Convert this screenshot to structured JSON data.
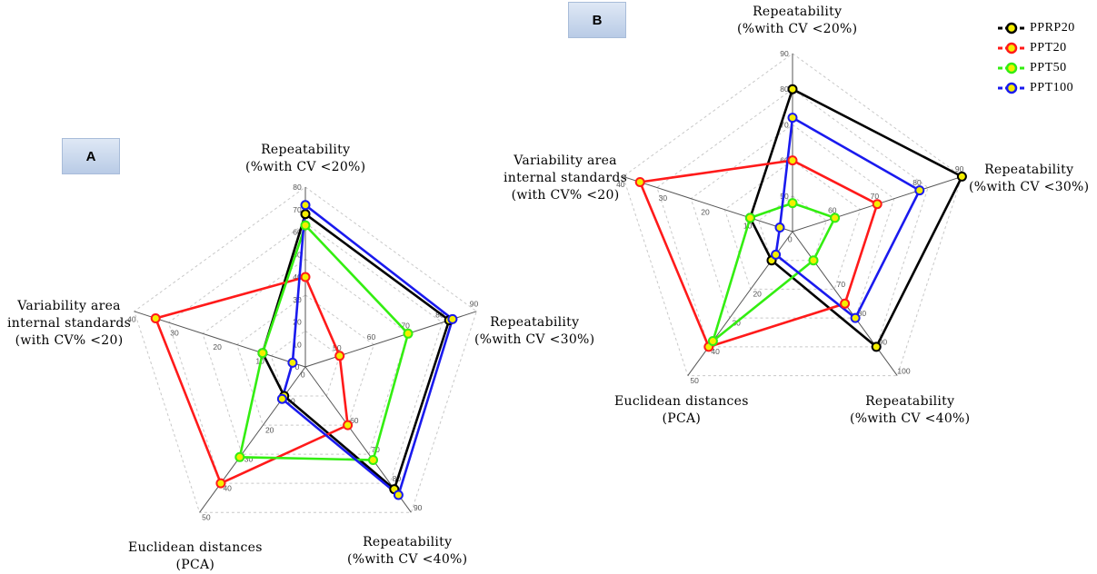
{
  "colors": {
    "PPRP20": "#000000",
    "PPT20": "#ff1a1a",
    "PPT50": "#33ee11",
    "PPT100": "#1a1aee",
    "marker_fill": "#f4ee00"
  },
  "chart_data": [
    {
      "panel": "A",
      "type": "radar",
      "axes": [
        {
          "title": [
            "Repeatability",
            "(%with CV <20%)"
          ],
          "min": 0,
          "max": 80,
          "ticks": [
            0,
            10,
            20,
            30,
            40,
            50,
            60,
            70,
            80
          ]
        },
        {
          "title": [
            "Repeatability",
            "(%with CV <30%)"
          ],
          "min": 40,
          "max": 90,
          "ticks": [
            50,
            60,
            70,
            80,
            90
          ]
        },
        {
          "title": [
            "Repeatability",
            "(%with CV <40%)"
          ],
          "min": 40,
          "max": 90,
          "ticks": [
            60,
            70,
            80,
            90
          ]
        },
        {
          "title": [
            "Euclidean distances",
            "(PCA)"
          ],
          "min": 0,
          "max": 50,
          "ticks": [
            10,
            20,
            30,
            40,
            50
          ]
        },
        {
          "title": [
            "Variability area",
            "internal standards",
            "(with CV% <20)"
          ],
          "min": 0,
          "max": 40,
          "ticks": [
            0,
            10,
            20,
            30,
            40
          ]
        }
      ],
      "series": [
        {
          "name": "PPRP20",
          "values": [
            68,
            82,
            82,
            10,
            10
          ]
        },
        {
          "name": "PPT20",
          "values": [
            40,
            50,
            60,
            40,
            35
          ]
        },
        {
          "name": "PPT50",
          "values": [
            63,
            70,
            72,
            31,
            10
          ]
        },
        {
          "name": "PPT100",
          "values": [
            72,
            83,
            84,
            11,
            3
          ]
        }
      ],
      "grid": "dashed pentagons"
    },
    {
      "panel": "B",
      "type": "radar",
      "axes": [
        {
          "title": [
            "Repeatability",
            "(%with CV <20%)"
          ],
          "min": 40,
          "max": 90,
          "ticks": [
            50,
            60,
            70,
            80,
            90
          ]
        },
        {
          "title": [
            "Repeatability",
            "(%with CV <30%)"
          ],
          "min": 50,
          "max": 90,
          "ticks": [
            60,
            70,
            80,
            90
          ]
        },
        {
          "title": [
            "Repeatability",
            "(%with CV <40%)"
          ],
          "min": 50,
          "max": 100,
          "ticks": [
            70,
            80,
            90,
            100
          ]
        },
        {
          "title": [
            "Euclidean distances",
            "(PCA)"
          ],
          "min": 0,
          "max": 50,
          "ticks": [
            20,
            30,
            40,
            50
          ]
        },
        {
          "title": [
            "Variability area",
            "internal standards",
            "(with CV% <20)"
          ],
          "min": 0,
          "max": 40,
          "ticks": [
            0,
            10,
            20,
            30,
            40
          ]
        }
      ],
      "series": [
        {
          "name": "PPRP20",
          "values": [
            80,
            90,
            90,
            10,
            10
          ]
        },
        {
          "name": "PPT20",
          "values": [
            60,
            70,
            75,
            40,
            36
          ]
        },
        {
          "name": "PPT50",
          "values": [
            48,
            60,
            60,
            38,
            10
          ]
        },
        {
          "name": "PPT100",
          "values": [
            72,
            80,
            80,
            8,
            3
          ]
        }
      ],
      "grid": "dashed pentagons"
    }
  ],
  "panels": {
    "a_label": "A",
    "b_label": "B"
  },
  "legend": {
    "items": [
      "PPRP20",
      "PPT20",
      "PPT50",
      "PPT100"
    ],
    "placement": "top-right"
  }
}
